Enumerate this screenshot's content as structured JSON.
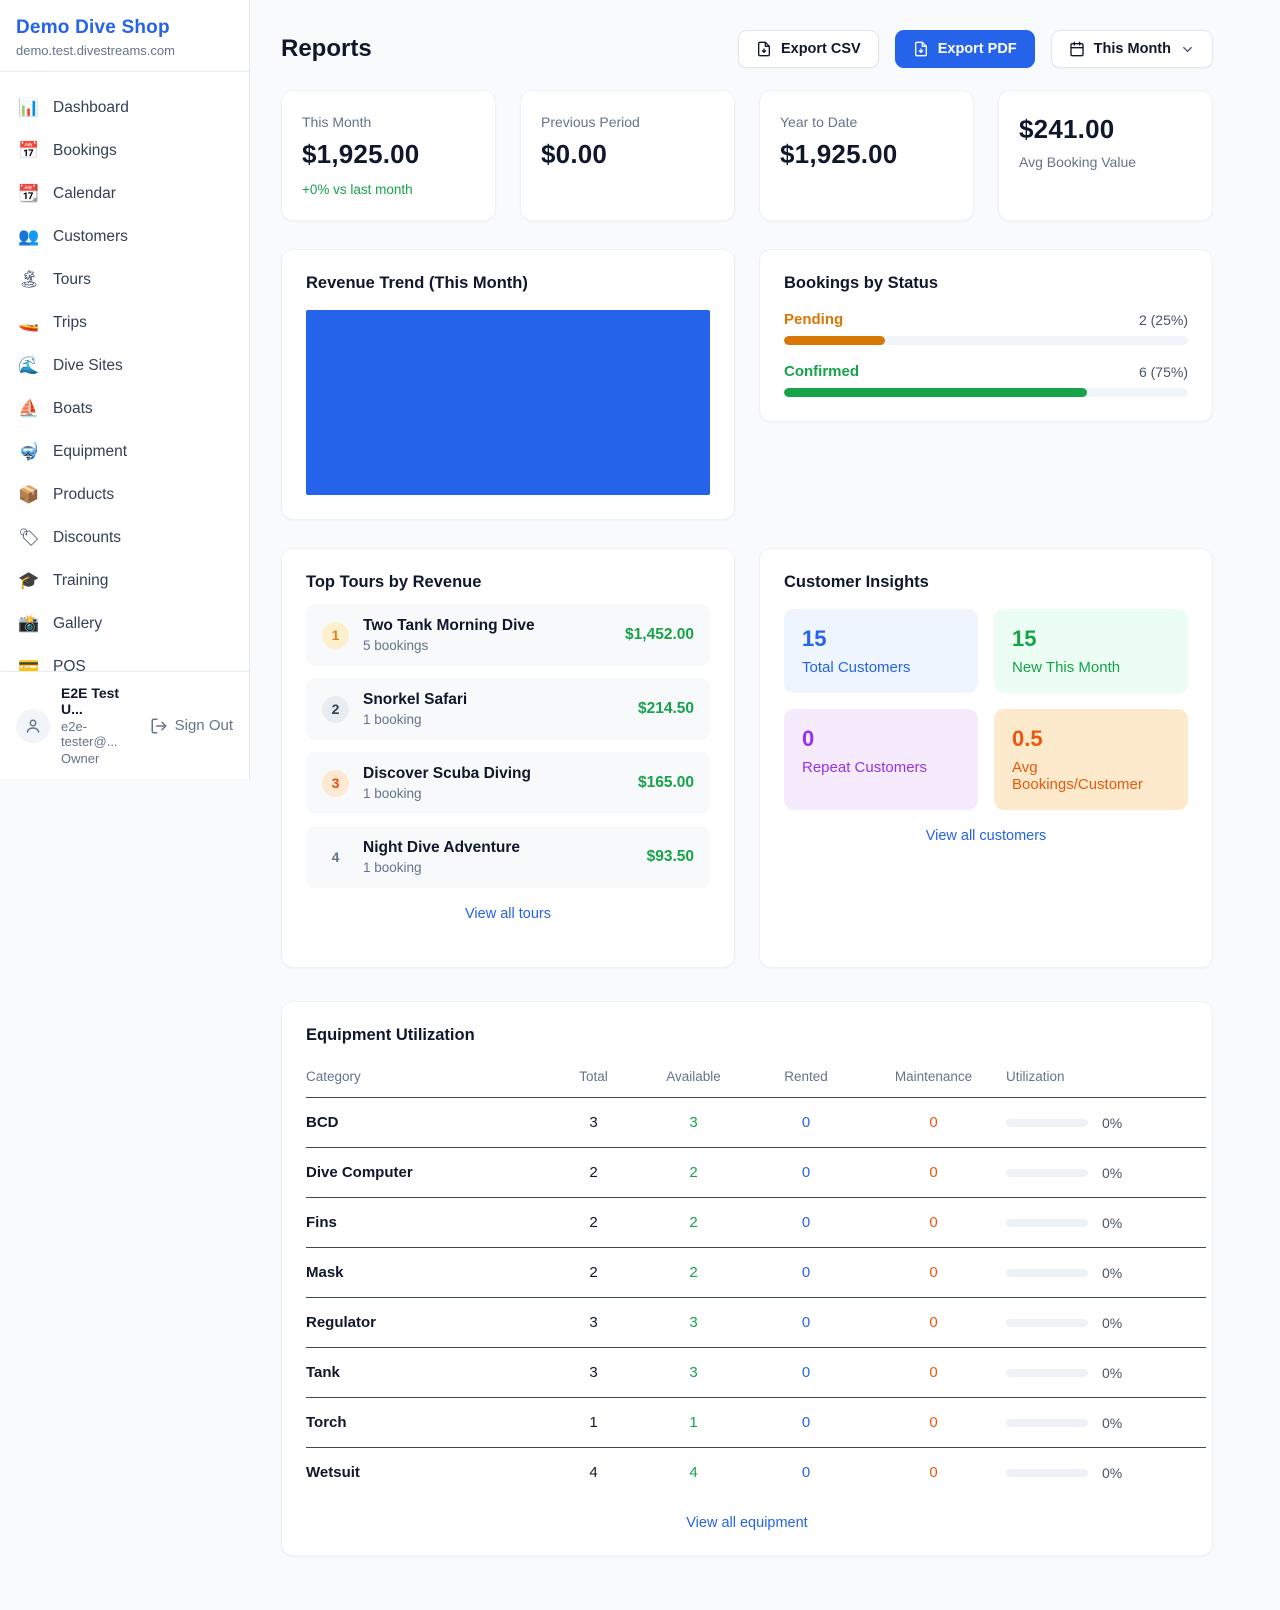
{
  "colors": {
    "accent_blue": "#2563eb",
    "green": "#16a34a",
    "orange": "#d97706",
    "deep_orange": "#ea580c",
    "purple": "#9333ea",
    "chart_bar_blue": "#2563eb"
  },
  "sidebar": {
    "title": "Demo Dive Shop",
    "domain": "demo.test.divestreams.com",
    "items": [
      {
        "icon": "📊",
        "label": "Dashboard"
      },
      {
        "icon": "📅",
        "label": "Bookings"
      },
      {
        "icon": "📆",
        "label": "Calendar"
      },
      {
        "icon": "👥",
        "label": "Customers"
      },
      {
        "icon": "🏝",
        "label": "Tours"
      },
      {
        "icon": "🚤",
        "label": "Trips"
      },
      {
        "icon": "🌊",
        "label": "Dive Sites"
      },
      {
        "icon": "⛵",
        "label": "Boats"
      },
      {
        "icon": "🤿",
        "label": "Equipment"
      },
      {
        "icon": "📦",
        "label": "Products"
      },
      {
        "icon": "🏷",
        "label": "Discounts"
      },
      {
        "icon": "🎓",
        "label": "Training"
      },
      {
        "icon": "📸",
        "label": "Gallery"
      },
      {
        "icon": "💳",
        "label": "POS"
      }
    ],
    "user": {
      "name": "E2E Test U...",
      "email": "e2e-tester@...",
      "role": "Owner",
      "signout_label": "Sign Out"
    }
  },
  "header": {
    "title": "Reports",
    "export_csv_label": "Export CSV",
    "export_pdf_label": "Export PDF",
    "period_label": "This Month"
  },
  "stats": {
    "cards": [
      {
        "label": "This Month",
        "value": "$1,925.00",
        "delta": "+0% vs last month"
      },
      {
        "label": "Previous Period",
        "value": "$0.00"
      },
      {
        "label": "Year to Date",
        "value": "$1,925.00"
      },
      {
        "label": "Avg Booking Value",
        "value": "$241.00"
      }
    ]
  },
  "chart_data": {
    "type": "bar",
    "title": "Revenue Trend (This Month)",
    "categories": [
      "This Month"
    ],
    "values": [
      1925.0
    ],
    "bar_color": "#2563eb",
    "axes_visible": false,
    "note_layout": "single bar fills entire plot area"
  },
  "revenue_trend": {
    "title": "Revenue Trend (This Month)"
  },
  "bookings_by_status": {
    "title": "Bookings by Status",
    "rows": [
      {
        "label": "Pending",
        "count": 2,
        "pct": 25,
        "value": "2 (25%)"
      },
      {
        "label": "Confirmed",
        "count": 6,
        "pct": 75,
        "value": "6 (75%)"
      }
    ]
  },
  "top_tours": {
    "title": "Top Tours by Revenue",
    "link": "View all tours",
    "items": [
      {
        "rank": "1",
        "name": "Two Tank Morning Dive",
        "bookings": "5 bookings",
        "amount": "$1,452.00"
      },
      {
        "rank": "2",
        "name": "Snorkel Safari",
        "bookings": "1 booking",
        "amount": "$214.50"
      },
      {
        "rank": "3",
        "name": "Discover Scuba Diving",
        "bookings": "1 booking",
        "amount": "$165.00"
      },
      {
        "rank": "4",
        "name": "Night Dive Adventure",
        "bookings": "1 booking",
        "amount": "$93.50"
      }
    ]
  },
  "customer_insights": {
    "title": "Customer Insights",
    "link": "View all customers",
    "tiles": [
      {
        "value": "15",
        "label": "Total Customers"
      },
      {
        "value": "15",
        "label": "New This Month"
      },
      {
        "value": "0",
        "label": "Repeat Customers"
      },
      {
        "value": "0.5",
        "label": "Avg Bookings/Customer"
      }
    ]
  },
  "equipment": {
    "title": "Equipment Utilization",
    "link": "View all equipment",
    "columns": [
      "Category",
      "Total",
      "Available",
      "Rented",
      "Maintenance",
      "Utilization"
    ],
    "rows": [
      {
        "category": "BCD",
        "total": "3",
        "available": "3",
        "rented": "0",
        "maintenance": "0",
        "utilization": "0%",
        "pct": 0
      },
      {
        "category": "Dive Computer",
        "total": "2",
        "available": "2",
        "rented": "0",
        "maintenance": "0",
        "utilization": "0%",
        "pct": 0
      },
      {
        "category": "Fins",
        "total": "2",
        "available": "2",
        "rented": "0",
        "maintenance": "0",
        "utilization": "0%",
        "pct": 0
      },
      {
        "category": "Mask",
        "total": "2",
        "available": "2",
        "rented": "0",
        "maintenance": "0",
        "utilization": "0%",
        "pct": 0
      },
      {
        "category": "Regulator",
        "total": "3",
        "available": "3",
        "rented": "0",
        "maintenance": "0",
        "utilization": "0%",
        "pct": 0
      },
      {
        "category": "Tank",
        "total": "3",
        "available": "3",
        "rented": "0",
        "maintenance": "0",
        "utilization": "0%",
        "pct": 0
      },
      {
        "category": "Torch",
        "total": "1",
        "available": "1",
        "rented": "0",
        "maintenance": "0",
        "utilization": "0%",
        "pct": 0
      },
      {
        "category": "Wetsuit",
        "total": "4",
        "available": "4",
        "rented": "0",
        "maintenance": "0",
        "utilization": "0%",
        "pct": 0
      }
    ]
  }
}
